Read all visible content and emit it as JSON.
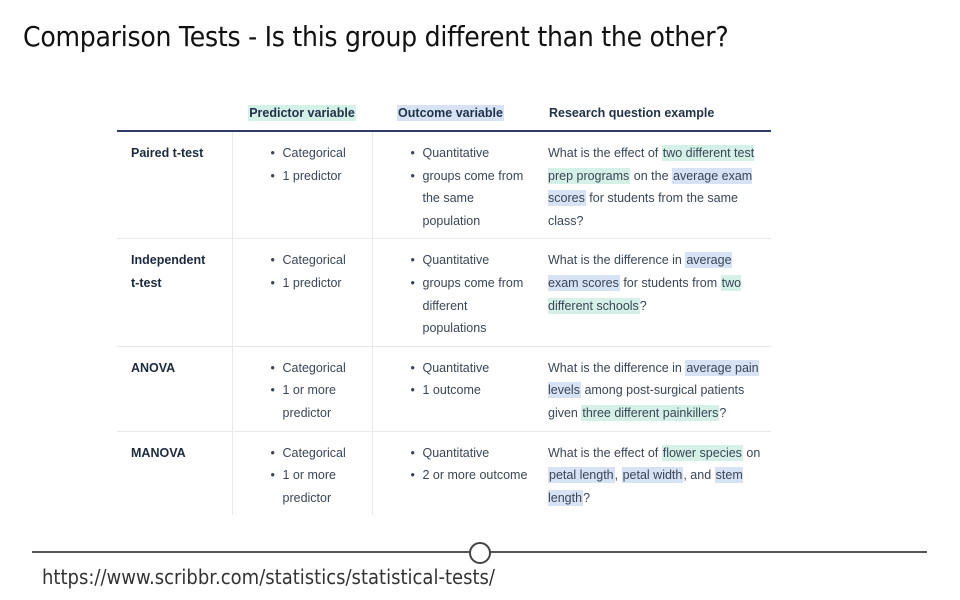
{
  "slide": {
    "title": "Comparison Tests - Is this group different than the other?",
    "source_url": "https://www.scribbr.com/statistics/statistical-tests/"
  },
  "table": {
    "headers": {
      "predictor": "Predictor variable",
      "outcome": "Outcome variable",
      "question": "Research question example"
    },
    "colors": {
      "green_highlight": "#d5f0e6",
      "blue_highlight": "#d7e3f5",
      "header_rule": "#2d3b66"
    },
    "rows": [
      {
        "name_lines": [
          "Paired t-test"
        ],
        "predictor": [
          "Categorical",
          "1 predictor"
        ],
        "outcome": [
          "Quantitative",
          "groups come from the same population"
        ],
        "question": [
          {
            "text": "What is the effect of ",
            "hl": ""
          },
          {
            "text": "two different test prep programs",
            "hl": "green"
          },
          {
            "text": " on the ",
            "hl": ""
          },
          {
            "text": "average exam scores",
            "hl": "blue"
          },
          {
            "text": " for students from the same class?",
            "hl": ""
          }
        ]
      },
      {
        "name_lines": [
          "Independent",
          "t-test"
        ],
        "predictor": [
          "Categorical",
          "1 predictor"
        ],
        "outcome": [
          "Quantitative",
          "groups come from different populations"
        ],
        "question": [
          {
            "text": "What is the difference in ",
            "hl": ""
          },
          {
            "text": "average exam scores",
            "hl": "blue"
          },
          {
            "text": " for students from ",
            "hl": ""
          },
          {
            "text": "two different schools",
            "hl": "green"
          },
          {
            "text": "?",
            "hl": ""
          }
        ]
      },
      {
        "name_lines": [
          "ANOVA"
        ],
        "predictor": [
          "Categorical",
          "1 or more predictor"
        ],
        "outcome": [
          "Quantitative",
          "1 outcome"
        ],
        "question": [
          {
            "text": "What is the difference in ",
            "hl": ""
          },
          {
            "text": "average pain levels",
            "hl": "blue"
          },
          {
            "text": " among post-surgical patients given ",
            "hl": ""
          },
          {
            "text": "three different painkillers",
            "hl": "green"
          },
          {
            "text": "?",
            "hl": ""
          }
        ]
      },
      {
        "name_lines": [
          "MANOVA"
        ],
        "predictor": [
          "Categorical",
          "1 or more predictor"
        ],
        "outcome": [
          "Quantitative",
          "2 or more outcome"
        ],
        "question": [
          {
            "text": "What is the effect of ",
            "hl": ""
          },
          {
            "text": "flower species",
            "hl": "green"
          },
          {
            "text": " on ",
            "hl": ""
          },
          {
            "text": "petal length",
            "hl": "blue"
          },
          {
            "text": ", ",
            "hl": ""
          },
          {
            "text": "petal width",
            "hl": "blue"
          },
          {
            "text": ", and ",
            "hl": ""
          },
          {
            "text": "stem length",
            "hl": "blue"
          },
          {
            "text": "?",
            "hl": ""
          }
        ]
      }
    ]
  }
}
